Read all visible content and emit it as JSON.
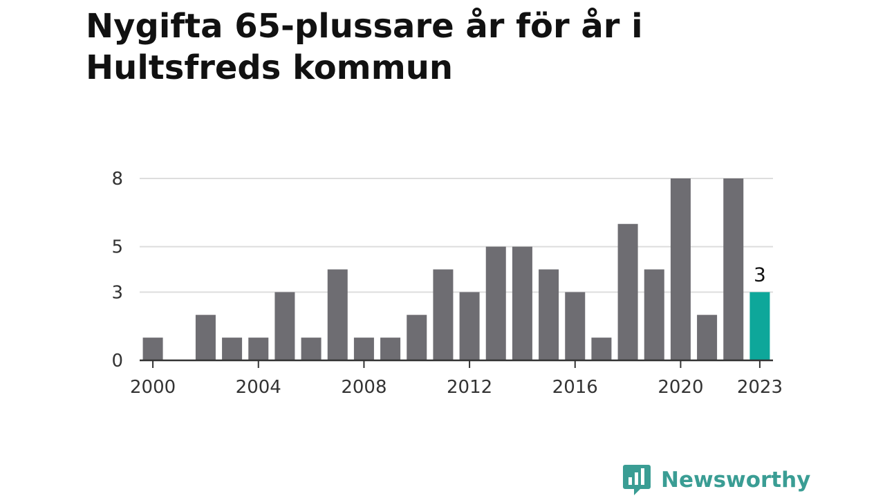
{
  "title": "Nygifta 65-plussare år för år i Hultsfreds kommun",
  "brand": {
    "name": "Newsworthy",
    "color": "#3a9d94"
  },
  "colors": {
    "bar": "#6e6d72",
    "highlight": "#0ea79a",
    "grid": "#dddddd",
    "axis": "#333333",
    "text": "#333333"
  },
  "chart_data": {
    "type": "bar",
    "title": "Nygifta 65-plussare år för år i Hultsfreds kommun",
    "xlabel": "",
    "ylabel": "",
    "x": [
      2000,
      2001,
      2002,
      2003,
      2004,
      2005,
      2006,
      2007,
      2008,
      2009,
      2010,
      2011,
      2012,
      2013,
      2014,
      2015,
      2016,
      2017,
      2018,
      2019,
      2020,
      2021,
      2022,
      2023
    ],
    "values": [
      1,
      0,
      2,
      1,
      1,
      3,
      1,
      4,
      1,
      1,
      2,
      4,
      3,
      5,
      5,
      4,
      3,
      1,
      6,
      4,
      8,
      2,
      8,
      3
    ],
    "ylim": [
      0,
      8
    ],
    "yticks": [
      0,
      3,
      5,
      8
    ],
    "xticks": [
      2000,
      2004,
      2008,
      2012,
      2016,
      2020,
      2023
    ],
    "highlight": {
      "x": 2023,
      "label": "3"
    },
    "grid": true
  }
}
